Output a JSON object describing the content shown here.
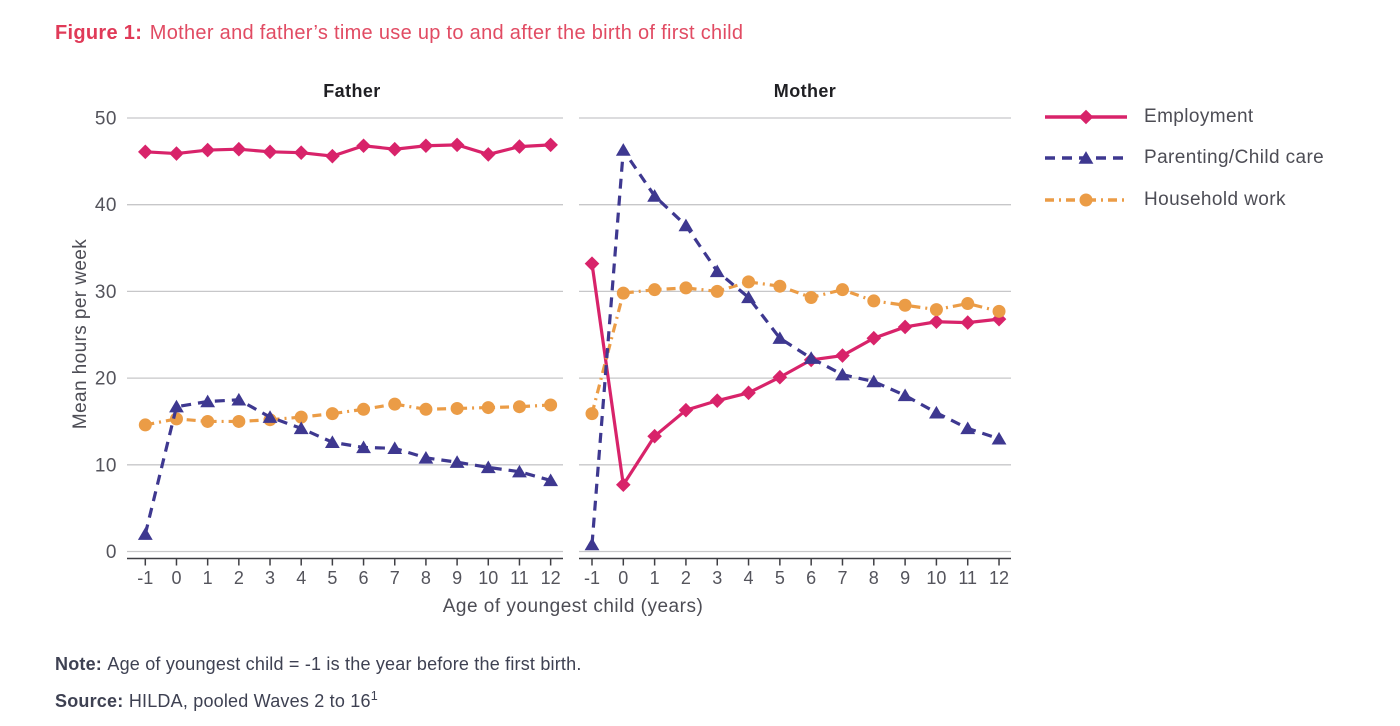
{
  "figure": {
    "title_prefix": "Figure 1:",
    "title_text": "Mother and father’s time use up to and after the birth of first child"
  },
  "notes": {
    "note_prefix": "Note:",
    "note_text": "Age of youngest child = -1 is the year before the first birth.",
    "source_prefix": "Source:",
    "source_text": "HILDA, pooled Waves 2 to 16",
    "source_sup": "1"
  },
  "colors": {
    "title": "#e14b63",
    "employment": "#d8236a",
    "parenting": "#3e3890",
    "household": "#eb9c46",
    "gridline": "#c7c7c9",
    "axis": "#3f3f44",
    "tick_label": "#54545c",
    "text": "#4d4d55"
  },
  "chart_data": {
    "type": "line",
    "x": [
      -1,
      0,
      1,
      2,
      3,
      4,
      5,
      6,
      7,
      8,
      9,
      10,
      11,
      12
    ],
    "xlabel": "Age of youngest child (years)",
    "ylabel": "Mean hours per week",
    "ylim": [
      0,
      50
    ],
    "yticks": [
      0,
      10,
      20,
      30,
      40,
      50
    ],
    "grid": "horizontal",
    "legend_position": "right",
    "series_meta": [
      {
        "name": "Employment",
        "color": "#d8236a",
        "line": "solid",
        "marker": "diamond"
      },
      {
        "name": "Parenting/Child care",
        "color": "#3e3890",
        "line": "dashed",
        "marker": "triangle"
      },
      {
        "name": "Household work",
        "color": "#eb9c46",
        "line": "dashdot",
        "marker": "circle"
      }
    ],
    "panels": [
      {
        "title": "Father",
        "series": [
          {
            "name": "Employment",
            "values": [
              46.1,
              45.9,
              46.3,
              46.4,
              46.1,
              46.0,
              45.6,
              46.8,
              46.4,
              46.8,
              46.9,
              45.8,
              46.7,
              46.9
            ]
          },
          {
            "name": "Parenting/Child care",
            "values": [
              2.0,
              16.7,
              17.3,
              17.5,
              15.5,
              14.2,
              12.6,
              12.0,
              11.9,
              10.8,
              10.3,
              9.7,
              9.2,
              8.2
            ]
          },
          {
            "name": "Household work",
            "values": [
              14.6,
              15.3,
              15.0,
              15.0,
              15.2,
              15.5,
              15.9,
              16.4,
              17.0,
              16.4,
              16.5,
              16.6,
              16.7,
              16.9
            ]
          }
        ]
      },
      {
        "title": "Mother",
        "series": [
          {
            "name": "Employment",
            "values": [
              33.2,
              7.7,
              13.3,
              16.3,
              17.4,
              18.3,
              20.1,
              22.1,
              22.6,
              24.6,
              25.9,
              26.5,
              26.4,
              26.8
            ]
          },
          {
            "name": "Parenting/Child care",
            "values": [
              0.8,
              46.3,
              41.0,
              37.6,
              32.3,
              29.3,
              24.6,
              22.3,
              20.4,
              19.6,
              18.0,
              16.0,
              14.2,
              13.0
            ]
          },
          {
            "name": "Household work",
            "values": [
              15.9,
              29.8,
              30.2,
              30.4,
              30.0,
              31.1,
              30.6,
              29.3,
              30.2,
              28.9,
              28.4,
              27.9,
              28.6,
              27.7
            ]
          }
        ]
      }
    ]
  }
}
